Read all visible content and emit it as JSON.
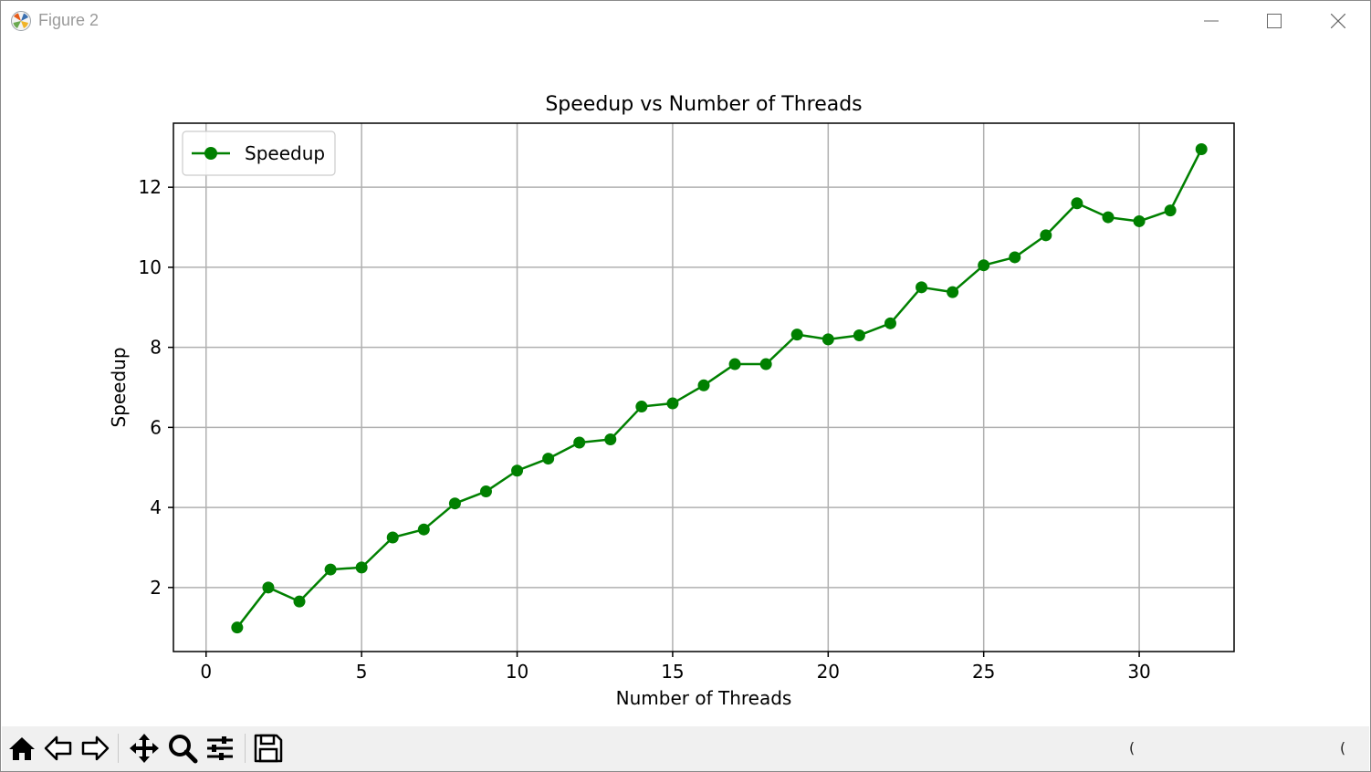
{
  "window": {
    "title": "Figure 2"
  },
  "toolbar": {
    "buttons": [
      "home-icon",
      "back-icon",
      "forward-icon",
      "pan-icon",
      "zoom-icon",
      "configure-subplots-icon",
      "save-icon"
    ],
    "readout_left": "(",
    "readout_right": "("
  },
  "chart_data": {
    "type": "line",
    "title": "Speedup vs Number of Threads",
    "xlabel": "Number of Threads",
    "ylabel": "Speedup",
    "xlim": [
      -1.05,
      33.05
    ],
    "ylim": [
      0.4,
      13.6
    ],
    "xticks": [
      0,
      5,
      10,
      15,
      20,
      25,
      30
    ],
    "yticks": [
      2,
      4,
      6,
      8,
      10,
      12
    ],
    "grid": true,
    "legend": "upper left",
    "series": [
      {
        "name": "Speedup",
        "color": "#008000",
        "marker": "circle",
        "x": [
          1,
          2,
          3,
          4,
          5,
          6,
          7,
          8,
          9,
          10,
          11,
          12,
          13,
          14,
          15,
          16,
          17,
          18,
          19,
          20,
          21,
          22,
          23,
          24,
          25,
          26,
          27,
          28,
          29,
          30,
          31,
          32
        ],
        "y": [
          1.0,
          2.0,
          1.65,
          2.45,
          2.5,
          3.25,
          3.45,
          4.1,
          4.4,
          4.92,
          5.22,
          5.62,
          5.7,
          6.52,
          6.6,
          7.05,
          7.58,
          7.58,
          8.32,
          8.2,
          8.3,
          8.6,
          9.5,
          9.38,
          10.05,
          10.25,
          10.8,
          11.6,
          11.25,
          11.15,
          11.42,
          12.95
        ]
      }
    ]
  }
}
